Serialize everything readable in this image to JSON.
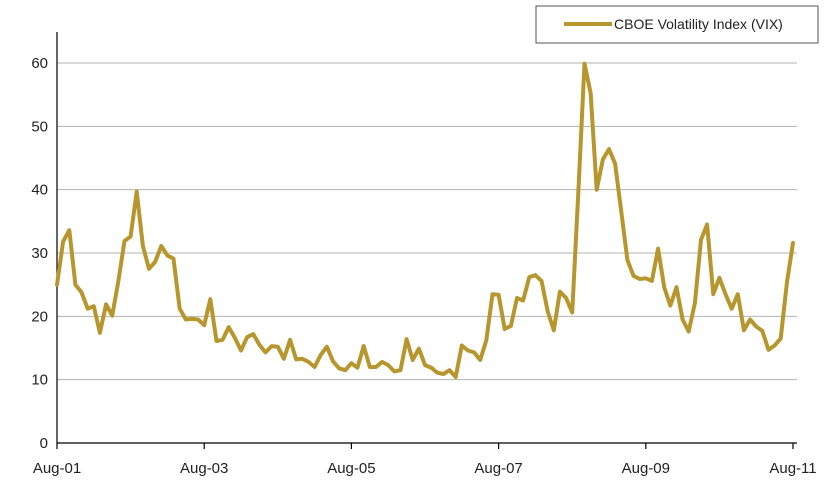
{
  "chart_data": {
    "type": "line",
    "title": "",
    "xlabel": "",
    "ylabel": "",
    "ylim": [
      0,
      60
    ],
    "yticks": [
      0,
      10,
      20,
      30,
      40,
      50,
      60
    ],
    "xlim": [
      "Aug-01",
      "Aug-11"
    ],
    "xticks": [
      "Aug-01",
      "Aug-03",
      "Aug-05",
      "Aug-07",
      "Aug-09",
      "Aug-11"
    ],
    "grid": "horizontal",
    "legend_position": "top-right",
    "series": [
      {
        "name": "CBOE Volatility Index (VIX)",
        "color": "#B8962E",
        "x": [
          "2001-08",
          "2001-09",
          "2001-10",
          "2001-11",
          "2001-12",
          "2002-01",
          "2002-02",
          "2002-03",
          "2002-04",
          "2002-05",
          "2002-06",
          "2002-07",
          "2002-08",
          "2002-09",
          "2002-10",
          "2002-11",
          "2002-12",
          "2003-01",
          "2003-02",
          "2003-03",
          "2003-04",
          "2003-05",
          "2003-06",
          "2003-07",
          "2003-08",
          "2003-09",
          "2003-10",
          "2003-11",
          "2003-12",
          "2004-01",
          "2004-02",
          "2004-03",
          "2004-04",
          "2004-05",
          "2004-06",
          "2004-07",
          "2004-08",
          "2004-09",
          "2004-10",
          "2004-11",
          "2004-12",
          "2005-01",
          "2005-02",
          "2005-03",
          "2005-04",
          "2005-05",
          "2005-06",
          "2005-07",
          "2005-08",
          "2005-09",
          "2005-10",
          "2005-11",
          "2005-12",
          "2006-01",
          "2006-02",
          "2006-03",
          "2006-04",
          "2006-05",
          "2006-06",
          "2006-07",
          "2006-08",
          "2006-09",
          "2006-10",
          "2006-11",
          "2006-12",
          "2007-01",
          "2007-02",
          "2007-03",
          "2007-04",
          "2007-05",
          "2007-06",
          "2007-07",
          "2007-08",
          "2007-09",
          "2007-10",
          "2007-11",
          "2007-12",
          "2008-01",
          "2008-02",
          "2008-03",
          "2008-04",
          "2008-05",
          "2008-06",
          "2008-07",
          "2008-08",
          "2008-09",
          "2008-10",
          "2008-11",
          "2008-12",
          "2009-01",
          "2009-02",
          "2009-03",
          "2009-04",
          "2009-05",
          "2009-06",
          "2009-07",
          "2009-08",
          "2009-09",
          "2009-10",
          "2009-11",
          "2009-12",
          "2010-01",
          "2010-02",
          "2010-03",
          "2010-04",
          "2010-05",
          "2010-06",
          "2010-07",
          "2010-08",
          "2010-09",
          "2010-10",
          "2010-11",
          "2010-12",
          "2011-01",
          "2011-02",
          "2011-03",
          "2011-04",
          "2011-05",
          "2011-06",
          "2011-07",
          "2011-08"
        ],
        "values": [
          25.0,
          31.8,
          33.6,
          25.0,
          23.8,
          21.2,
          21.6,
          17.4,
          21.9,
          20.1,
          25.5,
          31.9,
          32.6,
          39.7,
          31.1,
          27.5,
          28.6,
          31.1,
          29.6,
          29.1,
          21.2,
          19.5,
          19.6,
          19.5,
          18.6,
          22.7,
          16.1,
          16.3,
          18.3,
          16.6,
          14.6,
          16.7,
          17.2,
          15.5,
          14.3,
          15.3,
          15.2,
          13.3,
          16.3,
          13.2,
          13.3,
          12.8,
          12.0,
          13.9,
          15.2,
          12.9,
          11.8,
          11.5,
          12.6,
          11.9,
          15.3,
          12.0,
          12.0,
          12.8,
          12.3,
          11.3,
          11.5,
          16.4,
          13.1,
          14.9,
          12.3,
          11.9,
          11.1,
          10.9,
          11.5,
          10.4,
          15.4,
          14.6,
          14.3,
          13.1,
          16.2,
          23.5,
          23.4,
          18.0,
          18.5,
          22.9,
          22.5,
          26.2,
          26.5,
          25.6,
          20.8,
          17.8,
          23.9,
          22.9,
          20.6,
          39.5,
          59.9,
          55.3,
          40.0,
          44.8,
          46.4,
          44.1,
          36.5,
          28.9,
          26.4,
          25.9,
          26.0,
          25.6,
          30.7,
          24.6,
          21.7,
          24.6,
          19.5,
          17.6,
          22.1,
          32.1,
          34.5,
          23.5,
          26.1,
          23.5,
          21.2,
          23.5,
          17.8,
          19.5,
          18.4,
          17.7,
          14.7,
          15.4,
          16.5,
          25.3,
          31.6
        ]
      }
    ]
  }
}
